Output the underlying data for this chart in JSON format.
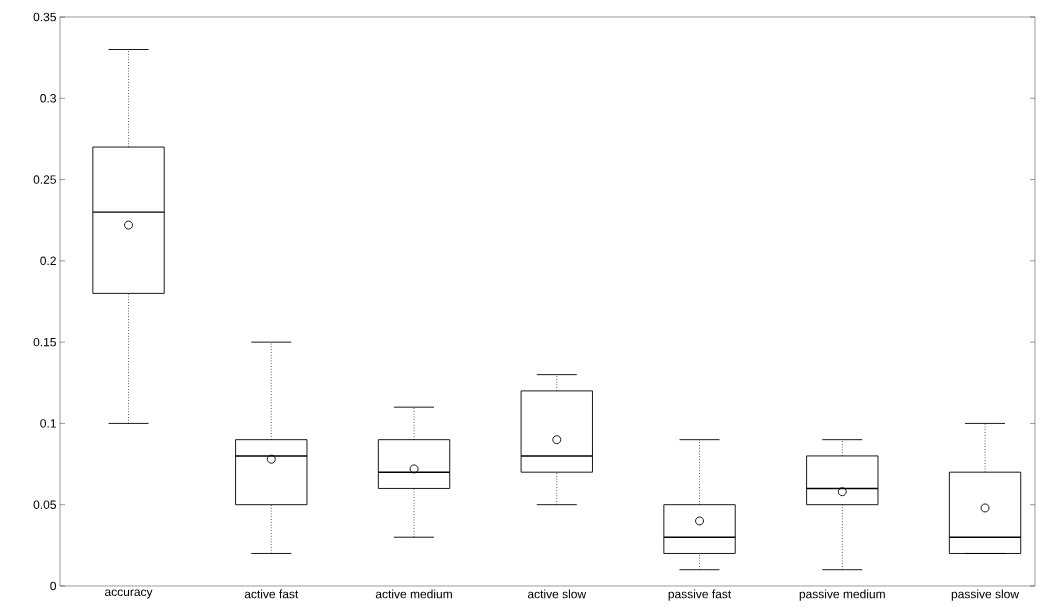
{
  "chart_data": {
    "type": "box",
    "categories": [
      "accuracy",
      "active fast",
      "active medium",
      "active slow",
      "passive fast",
      "passive medium",
      "passive slow"
    ],
    "boxes": [
      {
        "low": 0.1,
        "q1": 0.18,
        "median": 0.23,
        "q3": 0.27,
        "high": 0.33,
        "mean": 0.222
      },
      {
        "low": 0.02,
        "q1": 0.05,
        "median": 0.08,
        "q3": 0.09,
        "high": 0.15,
        "mean": 0.078
      },
      {
        "low": 0.03,
        "q1": 0.06,
        "median": 0.07,
        "q3": 0.09,
        "high": 0.11,
        "mean": 0.072
      },
      {
        "low": 0.05,
        "q1": 0.07,
        "median": 0.08,
        "q3": 0.12,
        "high": 0.13,
        "mean": 0.09
      },
      {
        "low": 0.01,
        "q1": 0.02,
        "median": 0.03,
        "q3": 0.05,
        "high": 0.09,
        "mean": 0.04
      },
      {
        "low": 0.01,
        "q1": 0.05,
        "median": 0.06,
        "q3": 0.08,
        "high": 0.09,
        "mean": 0.058
      },
      {
        "low": 0.02,
        "q1": 0.02,
        "median": 0.03,
        "q3": 0.07,
        "high": 0.1,
        "mean": 0.048
      }
    ],
    "ylim": [
      0,
      0.35
    ],
    "yticks": [
      0,
      0.05,
      0.1,
      0.15,
      0.2,
      0.25,
      0.3,
      0.35
    ]
  }
}
